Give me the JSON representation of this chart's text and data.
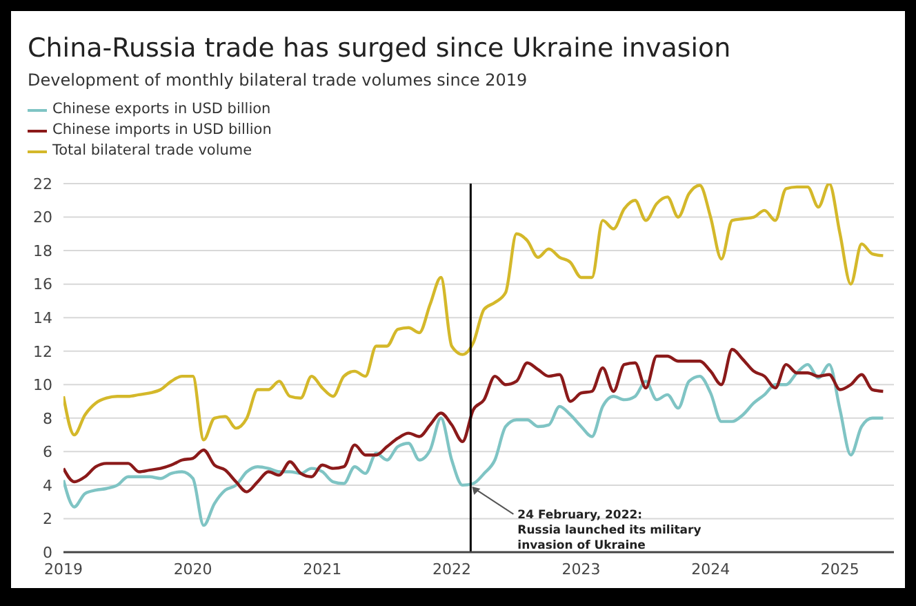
{
  "chart_data": {
    "type": "line",
    "title": "China-Russia trade has surged since Ukraine invasion",
    "subtitle": "Development of monthly bilateral trade volumes since 2019",
    "x": [
      "2019-01",
      "2019-02",
      "2019-03",
      "2019-04",
      "2019-05",
      "2019-06",
      "2019-07",
      "2019-08",
      "2019-09",
      "2019-10",
      "2019-11",
      "2019-12",
      "2020-01",
      "2020-02",
      "2020-03",
      "2020-04",
      "2020-05",
      "2020-06",
      "2020-07",
      "2020-08",
      "2020-09",
      "2020-10",
      "2020-11",
      "2020-12",
      "2021-01",
      "2021-02",
      "2021-03",
      "2021-04",
      "2021-05",
      "2021-06",
      "2021-07",
      "2021-08",
      "2021-09",
      "2021-10",
      "2021-11",
      "2021-12",
      "2022-01",
      "2022-02",
      "2022-03",
      "2022-04",
      "2022-05",
      "2022-06",
      "2022-07",
      "2022-08",
      "2022-09",
      "2022-10",
      "2022-11",
      "2022-12",
      "2023-01",
      "2023-02",
      "2023-03",
      "2023-04",
      "2023-05",
      "2023-06",
      "2023-07",
      "2023-08",
      "2023-09",
      "2023-10",
      "2023-11",
      "2023-12",
      "2024-01",
      "2024-02",
      "2024-03",
      "2024-04",
      "2024-05",
      "2024-06",
      "2024-07",
      "2024-08",
      "2024-09",
      "2024-10",
      "2024-11",
      "2024-12",
      "2025-01",
      "2025-02",
      "2025-03",
      "2025-04",
      "2025-05"
    ],
    "series": [
      {
        "name": "Chinese exports in USD billion",
        "color": "#7fc4c4",
        "values": [
          4.3,
          2.7,
          3.5,
          3.7,
          3.8,
          4.0,
          4.5,
          4.5,
          4.5,
          4.4,
          4.7,
          4.8,
          4.4,
          1.6,
          2.9,
          3.7,
          4.0,
          4.8,
          5.1,
          5.0,
          4.8,
          4.8,
          4.7,
          5.0,
          4.8,
          4.2,
          4.1,
          5.1,
          4.7,
          5.9,
          5.5,
          6.3,
          6.5,
          5.5,
          6.1,
          8.0,
          5.5,
          4.0,
          4.1,
          4.7,
          5.5,
          7.5,
          7.9,
          7.9,
          7.5,
          7.6,
          8.7,
          8.2,
          7.5,
          6.9,
          8.7,
          9.3,
          9.1,
          9.3,
          10.2,
          9.1,
          9.4,
          8.6,
          10.2,
          10.5,
          9.5,
          7.8,
          7.8,
          8.2,
          8.9,
          9.4,
          10.0,
          10.0,
          10.7,
          11.2,
          10.4,
          11.2,
          8.5,
          5.8,
          7.5,
          8.0,
          8.0
        ]
      },
      {
        "name": "Chinese imports in USD billion",
        "color": "#8b1a1a",
        "values": [
          5.0,
          4.2,
          4.5,
          5.1,
          5.3,
          5.3,
          5.3,
          4.8,
          4.9,
          5.0,
          5.2,
          5.5,
          5.6,
          6.1,
          5.2,
          4.9,
          4.2,
          3.6,
          4.2,
          4.8,
          4.6,
          5.4,
          4.7,
          4.5,
          5.2,
          5.0,
          5.1,
          6.4,
          5.8,
          5.8,
          6.3,
          6.8,
          7.1,
          6.9,
          7.6,
          8.3,
          7.6,
          6.6,
          8.5,
          9.1,
          10.5,
          10.0,
          10.2,
          11.3,
          10.9,
          10.5,
          10.6,
          9.0,
          9.5,
          9.6,
          11.0,
          9.6,
          11.2,
          11.3,
          9.8,
          11.7,
          11.7,
          11.4,
          11.4,
          11.4,
          10.8,
          10.0,
          12.1,
          11.5,
          10.8,
          10.5,
          9.8,
          11.2,
          10.7,
          10.7,
          10.5,
          10.6,
          9.7,
          10.0,
          10.6,
          9.7,
          9.6
        ]
      },
      {
        "name": "Total bilateral trade volume",
        "color": "#d4b82a",
        "values": [
          9.3,
          7.0,
          8.2,
          8.9,
          9.2,
          9.3,
          9.3,
          9.4,
          9.5,
          9.7,
          10.2,
          10.5,
          10.5,
          6.7,
          8.0,
          8.1,
          7.4,
          8.0,
          9.7,
          9.7,
          10.2,
          9.3,
          9.2,
          10.5,
          9.8,
          9.3,
          10.5,
          10.8,
          10.5,
          12.3,
          12.3,
          13.3,
          13.4,
          13.1,
          14.8,
          16.4,
          12.3,
          11.8,
          12.5,
          14.5,
          14.9,
          15.5,
          19.0,
          18.6,
          17.6,
          18.1,
          17.6,
          17.3,
          16.4,
          16.4,
          19.8,
          19.3,
          20.5,
          21.0,
          19.8,
          20.8,
          21.2,
          20.0,
          21.4,
          21.9,
          20.0,
          17.5,
          19.8,
          19.9,
          20.0,
          20.4,
          19.8,
          21.7,
          21.8,
          21.8,
          20.6,
          22.0,
          19.0,
          16.0,
          18.4,
          17.8,
          17.7
        ]
      }
    ],
    "xlim": [
      "2019-01",
      "2025-06"
    ],
    "xticks": [
      "2019",
      "2020",
      "2021",
      "2022",
      "2023",
      "2024",
      "2025"
    ],
    "ylim": [
      0,
      22
    ],
    "yticks": [
      0,
      2,
      4,
      6,
      8,
      10,
      12,
      14,
      16,
      18,
      20,
      22
    ],
    "ref_lines": [
      {
        "axis": "x",
        "value": "2022-02-24",
        "color": "#000000"
      }
    ],
    "annotations": [
      {
        "text": "24 February, 2022: Russia launched its military invasion of Ukraine",
        "x": "2022-02-24",
        "y": 4.0
      }
    ],
    "grid": "y",
    "legend": "top left",
    "marker": "none",
    "line_style": "solid"
  }
}
